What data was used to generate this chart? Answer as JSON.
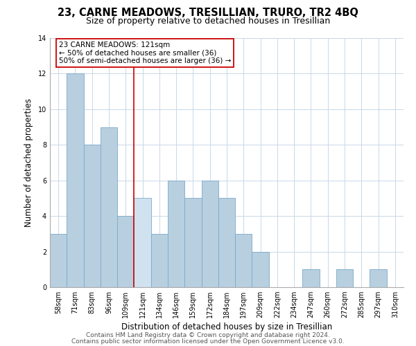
{
  "title": "23, CARNE MEADOWS, TRESILLIAN, TRURO, TR2 4BQ",
  "subtitle": "Size of property relative to detached houses in Tresillian",
  "xlabel": "Distribution of detached houses by size in Tresillian",
  "ylabel": "Number of detached properties",
  "categories": [
    "58sqm",
    "71sqm",
    "83sqm",
    "96sqm",
    "109sqm",
    "121sqm",
    "134sqm",
    "146sqm",
    "159sqm",
    "172sqm",
    "184sqm",
    "197sqm",
    "209sqm",
    "222sqm",
    "234sqm",
    "247sqm",
    "260sqm",
    "272sqm",
    "285sqm",
    "297sqm",
    "310sqm"
  ],
  "values": [
    3,
    12,
    8,
    9,
    4,
    5,
    3,
    6,
    5,
    6,
    5,
    3,
    2,
    0,
    0,
    1,
    0,
    1,
    0,
    1,
    0
  ],
  "highlight_index": 5,
  "bar_color": "#b8cfe0",
  "bar_edge_color": "#7aaac8",
  "highlight_line_color": "#cc0000",
  "annotation_text": "23 CARNE MEADOWS: 121sqm\n← 50% of detached houses are smaller (36)\n50% of semi-detached houses are larger (36) →",
  "annotation_box_edge": "#cc0000",
  "ylim": [
    0,
    14
  ],
  "yticks": [
    0,
    2,
    4,
    6,
    8,
    10,
    12,
    14
  ],
  "footer_line1": "Contains HM Land Registry data © Crown copyright and database right 2024.",
  "footer_line2": "Contains public sector information licensed under the Open Government Licence v3.0.",
  "bg_color": "#ffffff",
  "grid_color": "#c8d8e8",
  "title_fontsize": 10.5,
  "subtitle_fontsize": 9,
  "xlabel_fontsize": 8.5,
  "ylabel_fontsize": 8.5,
  "tick_fontsize": 7,
  "annotation_fontsize": 7.5,
  "footer_fontsize": 6.5
}
